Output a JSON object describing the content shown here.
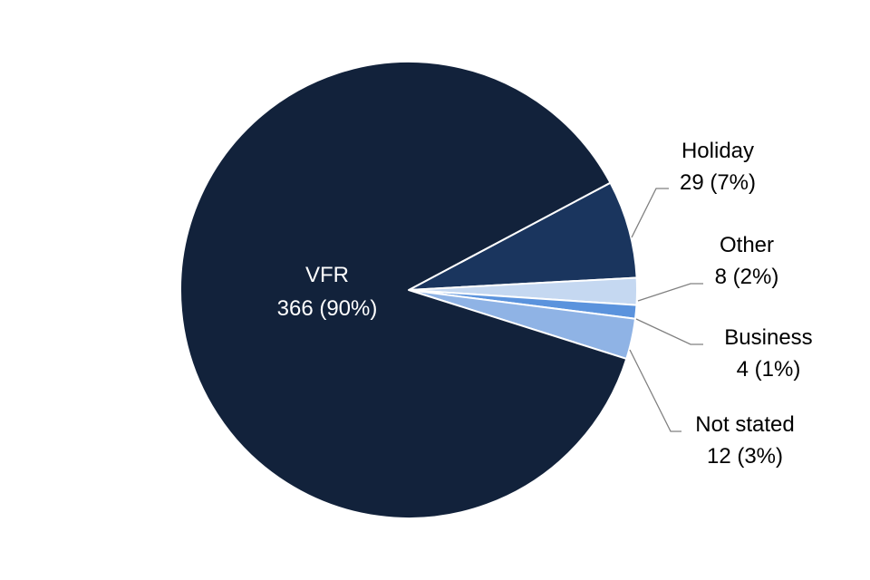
{
  "chart_data": {
    "type": "pie",
    "title": "",
    "slices": [
      {
        "name": "VFR",
        "value": 366,
        "percent": "90%",
        "label_line1": "VFR",
        "label_line2": "366 (90%)",
        "color": "#12223b"
      },
      {
        "name": "Holiday",
        "value": 29,
        "percent": "7%",
        "label_line1": "Holiday",
        "label_line2": "29 (7%)",
        "color": "#1a355e"
      },
      {
        "name": "Other",
        "value": 8,
        "percent": "2%",
        "label_line1": "Other",
        "label_line2": "8 (2%)",
        "color": "#c5d8f1"
      },
      {
        "name": "Business",
        "value": 4,
        "percent": "1%",
        "label_line1": "Business",
        "label_line2": "4 (1%)",
        "color": "#5b93dd"
      },
      {
        "name": "Not stated",
        "value": 12,
        "percent": "3%",
        "label_line1": "Not stated",
        "label_line2": "12 (3%)",
        "color": "#8fb3e5"
      }
    ],
    "label_text_colors": {
      "VFR": "#ffffff",
      "default": "#000000"
    },
    "slice_border_color": "#ffffff",
    "leader_line_color": "#808080"
  }
}
